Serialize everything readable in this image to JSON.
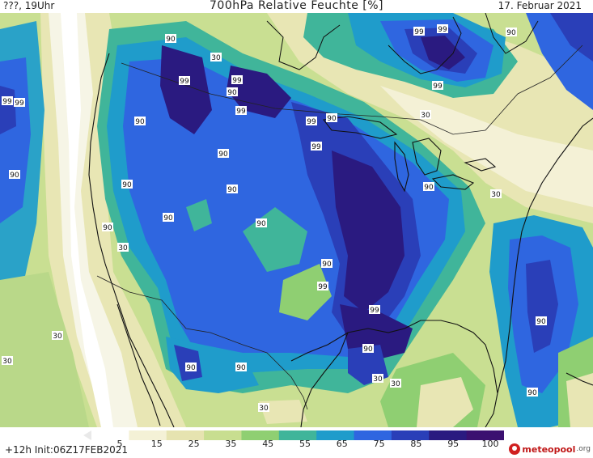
{
  "header": {
    "left": "???, 19Uhr",
    "title": "700hPa Relative Feuchte [%]",
    "date": "17. Februar 2021"
  },
  "footer": {
    "run": "+12h Init:06Z17FEB2021",
    "logo_text": "meteopool",
    "logo_tld": ".org"
  },
  "colorbar": {
    "ticks": [
      "5",
      "15",
      "25",
      "35",
      "45",
      "55",
      "65",
      "75",
      "85",
      "95",
      "100"
    ],
    "colors": [
      "#ffffff",
      "#f4f1d6",
      "#e6e3b0",
      "#c8de90",
      "#8fcf72",
      "#40b59a",
      "#1f9ccb",
      "#2f66e0",
      "#2a3fb8",
      "#2a1a80",
      "#3b1070"
    ]
  },
  "map": {
    "contour_labels": [
      {
        "text": "90"
      },
      {
        "text": "99"
      },
      {
        "text": "99"
      },
      {
        "text": "90"
      },
      {
        "text": "99"
      },
      {
        "text": "90"
      },
      {
        "text": "99"
      },
      {
        "text": "90"
      },
      {
        "text": "90"
      },
      {
        "text": "99"
      },
      {
        "text": "90"
      },
      {
        "text": "99"
      },
      {
        "text": "99"
      },
      {
        "text": "90"
      },
      {
        "text": "90"
      },
      {
        "text": "90"
      },
      {
        "text": "90"
      },
      {
        "text": "90"
      },
      {
        "text": "30"
      },
      {
        "text": "30"
      },
      {
        "text": "90"
      },
      {
        "text": "90"
      },
      {
        "text": "99"
      },
      {
        "text": "99"
      },
      {
        "text": "90"
      },
      {
        "text": "90"
      },
      {
        "text": "90"
      },
      {
        "text": "30"
      },
      {
        "text": "30"
      },
      {
        "text": "30"
      },
      {
        "text": "30"
      },
      {
        "text": "30"
      },
      {
        "text": "90"
      },
      {
        "text": "99"
      },
      {
        "text": "30"
      },
      {
        "text": "99"
      },
      {
        "text": "99"
      },
      {
        "text": "90"
      },
      {
        "text": "90"
      },
      {
        "text": "30"
      },
      {
        "text": "30"
      }
    ]
  }
}
